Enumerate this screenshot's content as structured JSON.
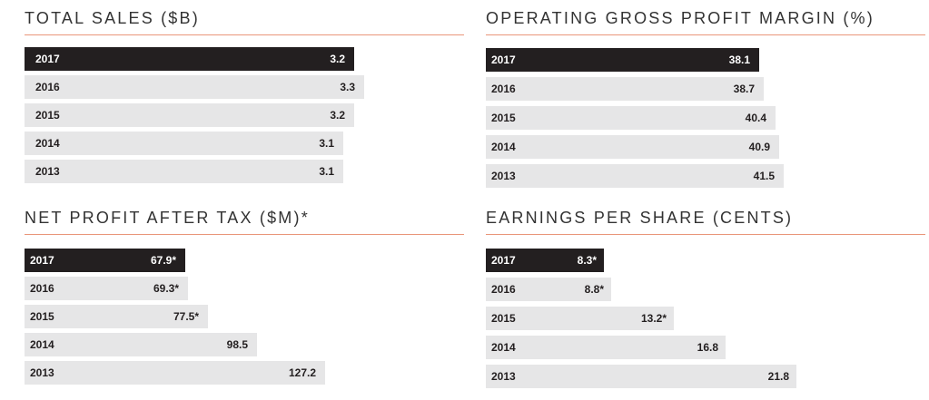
{
  "colors": {
    "highlight_bar": "#231f20",
    "bar": "#e6e6e7",
    "rule": "#e9967a",
    "highlight_text": "#ffffff",
    "text": "#231f20"
  },
  "chart_data": [
    {
      "type": "bar",
      "orientation": "horizontal",
      "title": "TOTAL SALES ($B)",
      "categories": [
        "2017",
        "2016",
        "2015",
        "2014",
        "2013"
      ],
      "values": [
        3.2,
        3.3,
        3.2,
        3.1,
        3.1
      ],
      "labels": [
        "3.2",
        "3.3",
        "3.2",
        "3.1",
        "3.1"
      ],
      "highlight": "2017",
      "xlim": [
        0,
        3.3
      ]
    },
    {
      "type": "bar",
      "orientation": "horizontal",
      "title": "OPERATING GROSS PROFIT MARGIN (%)",
      "categories": [
        "2017",
        "2016",
        "2015",
        "2014",
        "2013"
      ],
      "values": [
        38.1,
        38.7,
        40.4,
        40.9,
        41.5
      ],
      "labels": [
        "38.1",
        "38.7",
        "40.4",
        "40.9",
        "41.5"
      ],
      "highlight": "2017",
      "xlim": [
        0,
        41.5
      ]
    },
    {
      "type": "bar",
      "orientation": "horizontal",
      "title": "NET PROFIT AFTER TAX ($M)*",
      "categories": [
        "2017",
        "2016",
        "2015",
        "2014",
        "2013"
      ],
      "values": [
        67.9,
        69.3,
        77.5,
        98.5,
        127.2
      ],
      "labels": [
        "67.9*",
        "69.3*",
        "77.5*",
        "98.5",
        "127.2"
      ],
      "highlight": "2017",
      "xlim": [
        0,
        127.2
      ]
    },
    {
      "type": "bar",
      "orientation": "horizontal",
      "title": "EARNINGS PER SHARE (CENTS)",
      "categories": [
        "2017",
        "2016",
        "2015",
        "2014",
        "2013"
      ],
      "values": [
        8.3,
        8.8,
        13.2,
        16.8,
        21.8
      ],
      "labels": [
        "8.3*",
        "8.8*",
        "13.2*",
        "16.8",
        "21.8"
      ],
      "highlight": "2017",
      "xlim": [
        0,
        21.8
      ]
    }
  ]
}
